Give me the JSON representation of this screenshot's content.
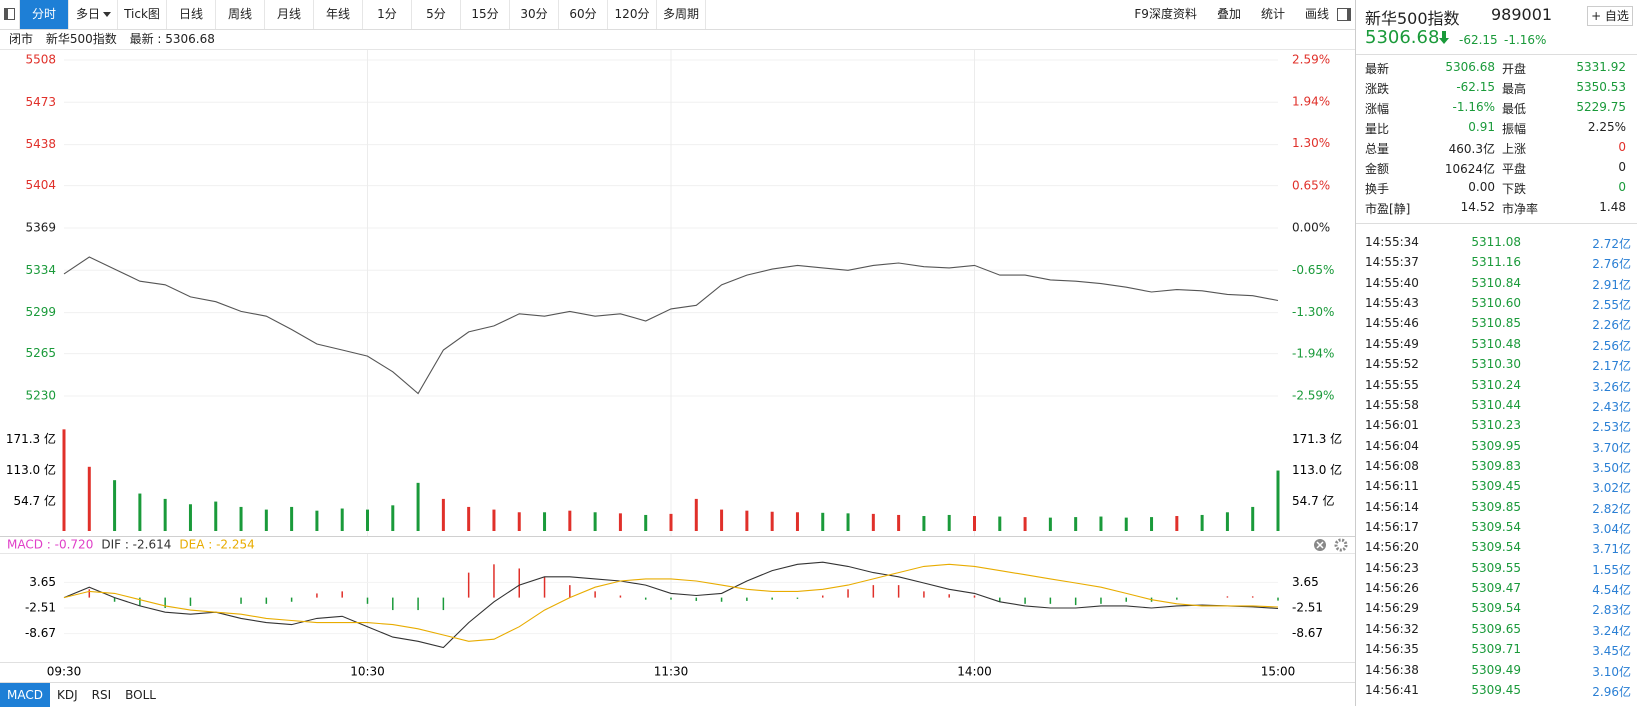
{
  "toolbar": {
    "tabs": [
      "分时",
      "多日",
      "Tick图",
      "日线",
      "周线",
      "月线",
      "年线",
      "1分",
      "5分",
      "15分",
      "30分",
      "60分",
      "120分",
      "多周期"
    ],
    "tools": [
      "F9深度资料",
      "叠加",
      "统计",
      "画线"
    ]
  },
  "info_bar": {
    "status": "闭市",
    "name": "新华500指数",
    "latest": "最新 : 5306.68"
  },
  "chart_data": [
    {
      "type": "line",
      "color": "#555555",
      "x": [
        0,
        5,
        10,
        15,
        20,
        25,
        30,
        35,
        40,
        45,
        50,
        55,
        60,
        65,
        70,
        75,
        80,
        85,
        90,
        95,
        100,
        105,
        110,
        115,
        120,
        125,
        130,
        135,
        140,
        145,
        150,
        155,
        160,
        165,
        170,
        175,
        180,
        185,
        190,
        195,
        200,
        205,
        210,
        215,
        220,
        225,
        230,
        235,
        240
      ],
      "values": [
        5331,
        5345,
        5335,
        5325,
        5322,
        5312,
        5308,
        5300,
        5296,
        5285,
        5273,
        5268,
        5263,
        5250,
        5232,
        5268,
        5283,
        5288,
        5298,
        5296,
        5300,
        5296,
        5298,
        5292,
        5302,
        5305,
        5322,
        5330,
        5335,
        5338,
        5336,
        5334,
        5338,
        5340,
        5337,
        5336,
        5338,
        5330,
        5330,
        5326,
        5325,
        5323,
        5320,
        5316,
        5318,
        5317,
        5314,
        5313,
        5309
      ],
      "xlim": [
        0,
        240
      ],
      "xticks": [
        {
          "value": 0,
          "label": "09:30"
        },
        {
          "value": 60,
          "label": "10:30"
        },
        {
          "value": 120,
          "label": "11:30"
        },
        {
          "value": 180,
          "label": "14:00"
        },
        {
          "value": 240,
          "label": "15:00"
        }
      ],
      "ylim": [
        5225,
        5508
      ],
      "yticks": [
        5508,
        5473,
        5438,
        5404,
        5369,
        5334,
        5299,
        5265,
        5230
      ],
      "y2lim": [
        -2.68,
        2.59
      ],
      "y2ticks": [
        {
          "value": 2.59,
          "label": "2.59%"
        },
        {
          "value": 1.94,
          "label": "1.94%"
        },
        {
          "value": 1.3,
          "label": "1.30%"
        },
        {
          "value": 0.65,
          "label": "0.65%"
        },
        {
          "value": 0,
          "label": "0.00%"
        },
        {
          "value": -0.65,
          "label": "-0.65%"
        },
        {
          "value": -1.3,
          "label": "-1.30%"
        },
        {
          "value": -1.94,
          "label": "-1.94%"
        },
        {
          "value": -2.59,
          "label": "-2.59%"
        }
      ],
      "up_color": "#e0302a",
      "down_color": "#1a9a3a",
      "flat_color": "#222222",
      "grid": true
    },
    {
      "type": "bar",
      "x": [
        0,
        5,
        10,
        15,
        20,
        25,
        30,
        35,
        40,
        45,
        50,
        55,
        60,
        65,
        70,
        75,
        80,
        85,
        90,
        95,
        100,
        105,
        110,
        115,
        120,
        125,
        130,
        135,
        140,
        145,
        150,
        155,
        160,
        165,
        170,
        175,
        180,
        185,
        190,
        195,
        200,
        205,
        210,
        215,
        220,
        225,
        230,
        235,
        240
      ],
      "values": [
        190,
        120,
        95,
        70,
        60,
        50,
        55,
        45,
        40,
        45,
        38,
        42,
        40,
        48,
        90,
        60,
        45,
        40,
        35,
        35,
        38,
        35,
        33,
        30,
        32,
        60,
        40,
        38,
        36,
        35,
        34,
        33,
        32,
        30,
        28,
        30,
        28,
        27,
        26,
        25,
        26,
        27,
        25,
        26,
        28,
        30,
        35,
        45,
        113
      ],
      "xlim": [
        0,
        240
      ],
      "ylim": [
        0,
        200
      ],
      "yticks": [
        {
          "value": 171.3,
          "label": "171.3 亿"
        },
        {
          "value": 113.0,
          "label": "113.0 亿"
        },
        {
          "value": 54.7,
          "label": "54.7 亿"
        }
      ],
      "up_color": "#e0302a",
      "down_color": "#1a9a3a"
    },
    {
      "type": "line",
      "x": [
        0,
        5,
        10,
        15,
        20,
        25,
        30,
        35,
        40,
        45,
        50,
        55,
        60,
        65,
        70,
        75,
        80,
        85,
        90,
        95,
        100,
        105,
        110,
        115,
        120,
        125,
        130,
        135,
        140,
        145,
        150,
        155,
        160,
        165,
        170,
        175,
        180,
        185,
        190,
        195,
        200,
        205,
        210,
        215,
        220,
        225,
        230,
        235,
        240
      ],
      "series": [
        {
          "name": "MACD : -0.720",
          "type": "bar",
          "color": "#e040c8",
          "values": [
            0,
            2,
            -1,
            -2,
            -2.5,
            -2,
            0,
            -1.5,
            -1.5,
            -1,
            1,
            1.5,
            -1.5,
            -3,
            -3,
            -3,
            6,
            8,
            7,
            5,
            3,
            1.5,
            0.5,
            -0.5,
            -0.5,
            -0.8,
            -1,
            -0.8,
            -0.5,
            -0.3,
            0.5,
            2,
            3,
            3,
            1.5,
            0.8,
            0.5,
            -1,
            -1.5,
            -1.5,
            -1.8,
            -1.5,
            -1,
            -1,
            -0.5,
            0,
            0.3,
            0.3,
            -0.72
          ]
        },
        {
          "name": "DIF : -2.614",
          "color": "#333333",
          "values": [
            0,
            2.5,
            0,
            -2,
            -3.5,
            -4,
            -3.5,
            -5,
            -6,
            -6.5,
            -5,
            -4.5,
            -7,
            -9.5,
            -10.5,
            -12,
            -6,
            -1,
            3,
            5,
            5,
            4.5,
            4,
            3,
            1,
            0.5,
            1,
            4,
            6.5,
            8,
            8.5,
            7.5,
            6,
            5,
            3.5,
            2,
            1,
            -1,
            -2,
            -2.5,
            -2.5,
            -2,
            -2,
            -2.5,
            -2,
            -1.8,
            -2,
            -2.2,
            -2.614
          ]
        },
        {
          "name": "DEA : -2.254",
          "color": "#e8ac00",
          "values": [
            0,
            1.5,
            1,
            -0.5,
            -2,
            -3,
            -3.5,
            -4,
            -5,
            -5.5,
            -6,
            -6,
            -6,
            -6.5,
            -7.5,
            -9,
            -10.5,
            -10,
            -7,
            -3,
            0,
            2.5,
            4,
            4.5,
            4.5,
            4,
            3,
            2,
            1.5,
            1.5,
            2,
            3,
            4.5,
            6,
            7.5,
            8,
            7.5,
            6.5,
            5.5,
            4.5,
            3.5,
            2.5,
            1,
            -0.5,
            -1.5,
            -2,
            -2,
            -2,
            -2.254
          ]
        }
      ],
      "xlim": [
        0,
        240
      ],
      "ylim": [
        -15,
        10
      ],
      "yticks": [
        3.65,
        -2.51,
        -8.67
      ],
      "up_color": "#e0302a",
      "down_color": "#1a9a3a"
    }
  ],
  "indicator_tabs": [
    "MACD",
    "KDJ",
    "RSI",
    "BOLL"
  ],
  "quote": {
    "name": "新华500指数",
    "code": "989001",
    "watch": "+ 自选",
    "price": "5306.68",
    "change": "-62.15",
    "change_pct": "-1.16%",
    "color": "#1a9a3a",
    "rows": [
      [
        {
          "label": "最新",
          "value": "5306.68",
          "color": "#1a9a3a"
        },
        {
          "label": "开盘",
          "value": "5331.92",
          "color": "#1a9a3a"
        }
      ],
      [
        {
          "label": "涨跌",
          "value": "-62.15",
          "color": "#1a9a3a"
        },
        {
          "label": "最高",
          "value": "5350.53",
          "color": "#1a9a3a"
        }
      ],
      [
        {
          "label": "涨幅",
          "value": "-1.16%",
          "color": "#1a9a3a"
        },
        {
          "label": "最低",
          "value": "5229.75",
          "color": "#1a9a3a"
        }
      ],
      [
        {
          "label": "量比",
          "value": "0.91",
          "color": "#1a9a3a"
        },
        {
          "label": "振幅",
          "value": "2.25%",
          "color": "#222222"
        }
      ],
      [
        {
          "label": "总量",
          "value": "460.3亿",
          "color": "#222222"
        },
        {
          "label": "上涨",
          "value": "0",
          "color": "#e0302a"
        }
      ],
      [
        {
          "label": "金额",
          "value": "10624亿",
          "color": "#222222"
        },
        {
          "label": "平盘",
          "value": "0",
          "color": "#222222"
        }
      ],
      [
        {
          "label": "换手",
          "value": "0.00",
          "color": "#222222"
        },
        {
          "label": "下跌",
          "value": "0",
          "color": "#1a9a3a"
        }
      ],
      [
        {
          "label": "市盈[静]",
          "value": "14.52",
          "color": "#222222"
        },
        {
          "label": "市净率",
          "value": "1.48",
          "color": "#222222"
        }
      ]
    ]
  },
  "trades": [
    [
      "14:55:34",
      "5311.08",
      "2.72亿"
    ],
    [
      "14:55:37",
      "5311.16",
      "2.76亿"
    ],
    [
      "14:55:40",
      "5310.84",
      "2.91亿"
    ],
    [
      "14:55:43",
      "5310.60",
      "2.55亿"
    ],
    [
      "14:55:46",
      "5310.85",
      "2.26亿"
    ],
    [
      "14:55:49",
      "5310.48",
      "2.56亿"
    ],
    [
      "14:55:52",
      "5310.30",
      "2.17亿"
    ],
    [
      "14:55:55",
      "5310.24",
      "3.26亿"
    ],
    [
      "14:55:58",
      "5310.44",
      "2.43亿"
    ],
    [
      "14:56:01",
      "5310.23",
      "2.53亿"
    ],
    [
      "14:56:04",
      "5309.95",
      "3.70亿"
    ],
    [
      "14:56:08",
      "5309.83",
      "3.50亿"
    ],
    [
      "14:56:11",
      "5309.45",
      "3.02亿"
    ],
    [
      "14:56:14",
      "5309.85",
      "2.82亿"
    ],
    [
      "14:56:17",
      "5309.54",
      "3.04亿"
    ],
    [
      "14:56:20",
      "5309.54",
      "3.71亿"
    ],
    [
      "14:56:23",
      "5309.55",
      "1.55亿"
    ],
    [
      "14:56:26",
      "5309.47",
      "4.54亿"
    ],
    [
      "14:56:29",
      "5309.54",
      "2.83亿"
    ],
    [
      "14:56:32",
      "5309.65",
      "3.24亿"
    ],
    [
      "14:56:35",
      "5309.71",
      "3.45亿"
    ],
    [
      "14:56:38",
      "5309.49",
      "3.10亿"
    ],
    [
      "14:56:41",
      "5309.45",
      "2.96亿"
    ]
  ]
}
